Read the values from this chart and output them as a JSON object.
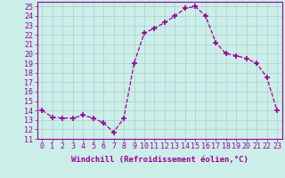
{
  "x": [
    0,
    1,
    2,
    3,
    4,
    5,
    6,
    7,
    8,
    9,
    10,
    11,
    12,
    13,
    14,
    15,
    16,
    17,
    18,
    19,
    20,
    21,
    22,
    23
  ],
  "y": [
    14,
    13.3,
    13.2,
    13.2,
    13.5,
    13.2,
    12.7,
    11.7,
    13.2,
    19.0,
    22.2,
    22.7,
    23.3,
    24.0,
    24.8,
    25.0,
    24.0,
    21.2,
    20.0,
    19.8,
    19.5,
    19.0,
    17.5,
    14.0
  ],
  "line_color": "#990099",
  "marker": "+",
  "marker_size": 5,
  "marker_linewidth": 1.2,
  "bg_color": "#cceee8",
  "grid_color": "#aacccc",
  "xlabel": "Windchill (Refroidissement éolien,°C)",
  "xlabel_fontsize": 6.5,
  "tick_fontsize": 6,
  "xlim": [
    -0.5,
    23.5
  ],
  "ylim": [
    11,
    25.5
  ],
  "yticks": [
    11,
    12,
    13,
    14,
    15,
    16,
    17,
    18,
    19,
    20,
    21,
    22,
    23,
    24,
    25
  ],
  "xticks": [
    0,
    1,
    2,
    3,
    4,
    5,
    6,
    7,
    8,
    9,
    10,
    11,
    12,
    13,
    14,
    15,
    16,
    17,
    18,
    19,
    20,
    21,
    22,
    23
  ]
}
